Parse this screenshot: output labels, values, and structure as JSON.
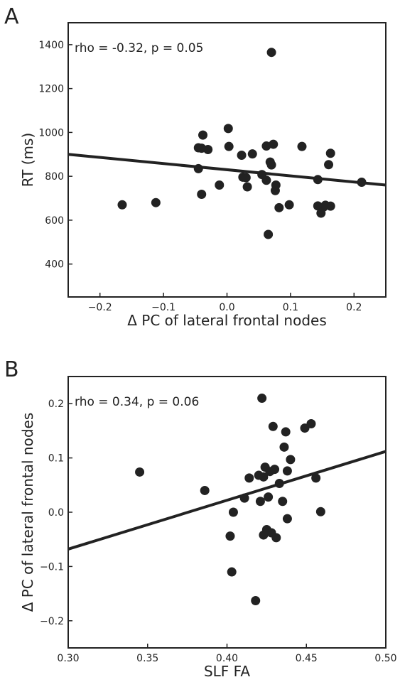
{
  "chart_data": [
    {
      "panel": "A",
      "type": "scatter",
      "xlabel": "Δ PC of lateral frontal nodes",
      "ylabel": "RT (ms)",
      "annotation": "rho = -0.32, p = 0.05",
      "xlim": [
        -0.25,
        0.25
      ],
      "ylim": [
        250,
        1500
      ],
      "xticks": [
        -0.2,
        -0.1,
        0.0,
        0.1,
        0.2
      ],
      "xtick_labels": [
        "−0.2",
        "−0.1",
        "0.0",
        "0.1",
        "0.2"
      ],
      "yticks": [
        400,
        600,
        800,
        1000,
        1200,
        1400
      ],
      "ytick_labels": [
        "400",
        "600",
        "800",
        "1000",
        "1200",
        "1400"
      ],
      "grid": false,
      "point_color": "#222222",
      "fit_line": {
        "x": [
          -0.25,
          0.25
        ],
        "y": [
          900,
          760
        ]
      },
      "points": [
        {
          "x": -0.165,
          "y": 670
        },
        {
          "x": -0.112,
          "y": 680
        },
        {
          "x": -0.045,
          "y": 835
        },
        {
          "x": -0.045,
          "y": 930
        },
        {
          "x": -0.038,
          "y": 988
        },
        {
          "x": -0.04,
          "y": 928
        },
        {
          "x": -0.04,
          "y": 718
        },
        {
          "x": -0.03,
          "y": 922
        },
        {
          "x": -0.012,
          "y": 760
        },
        {
          "x": 0.002,
          "y": 1018
        },
        {
          "x": 0.003,
          "y": 936
        },
        {
          "x": 0.023,
          "y": 896
        },
        {
          "x": 0.025,
          "y": 796
        },
        {
          "x": 0.03,
          "y": 794
        },
        {
          "x": 0.032,
          "y": 752
        },
        {
          "x": 0.04,
          "y": 902
        },
        {
          "x": 0.055,
          "y": 808
        },
        {
          "x": 0.062,
          "y": 938
        },
        {
          "x": 0.062,
          "y": 782
        },
        {
          "x": 0.065,
          "y": 535
        },
        {
          "x": 0.068,
          "y": 865
        },
        {
          "x": 0.07,
          "y": 1365
        },
        {
          "x": 0.07,
          "y": 852
        },
        {
          "x": 0.073,
          "y": 946
        },
        {
          "x": 0.076,
          "y": 735
        },
        {
          "x": 0.077,
          "y": 760
        },
        {
          "x": 0.082,
          "y": 657
        },
        {
          "x": 0.098,
          "y": 670
        },
        {
          "x": 0.118,
          "y": 936
        },
        {
          "x": 0.143,
          "y": 785
        },
        {
          "x": 0.143,
          "y": 665
        },
        {
          "x": 0.148,
          "y": 632
        },
        {
          "x": 0.152,
          "y": 660
        },
        {
          "x": 0.155,
          "y": 668
        },
        {
          "x": 0.16,
          "y": 853
        },
        {
          "x": 0.163,
          "y": 905
        },
        {
          "x": 0.163,
          "y": 664
        },
        {
          "x": 0.212,
          "y": 773
        }
      ]
    },
    {
      "panel": "B",
      "type": "scatter",
      "xlabel": "SLF FA",
      "ylabel": "Δ PC of lateral frontal nodes",
      "annotation": "rho = 0.34, p = 0.06",
      "xlim": [
        0.3,
        0.5
      ],
      "ylim": [
        -0.25,
        0.25
      ],
      "xticks": [
        0.3,
        0.35,
        0.4,
        0.45,
        0.5
      ],
      "xtick_labels": [
        "0.30",
        "0.35",
        "0.40",
        "0.45",
        "0.50"
      ],
      "yticks": [
        -0.2,
        -0.1,
        0.0,
        0.1,
        0.2
      ],
      "ytick_labels": [
        "−0.2",
        "−0.1",
        "0.0",
        "0.1",
        "0.2"
      ],
      "grid": false,
      "point_color": "#222222",
      "fit_line": {
        "x": [
          0.3,
          0.5
        ],
        "y": [
          -0.068,
          0.112
        ]
      },
      "points": [
        {
          "x": 0.345,
          "y": 0.074
        },
        {
          "x": 0.386,
          "y": 0.04
        },
        {
          "x": 0.402,
          "y": -0.044
        },
        {
          "x": 0.403,
          "y": -0.11
        },
        {
          "x": 0.404,
          "y": 0.0
        },
        {
          "x": 0.411,
          "y": 0.026
        },
        {
          "x": 0.414,
          "y": 0.063
        },
        {
          "x": 0.418,
          "y": -0.163
        },
        {
          "x": 0.42,
          "y": 0.068
        },
        {
          "x": 0.421,
          "y": 0.02
        },
        {
          "x": 0.422,
          "y": 0.21
        },
        {
          "x": 0.423,
          "y": 0.065
        },
        {
          "x": 0.423,
          "y": -0.042
        },
        {
          "x": 0.424,
          "y": 0.083
        },
        {
          "x": 0.425,
          "y": -0.032
        },
        {
          "x": 0.426,
          "y": 0.028
        },
        {
          "x": 0.427,
          "y": 0.075
        },
        {
          "x": 0.428,
          "y": -0.038
        },
        {
          "x": 0.429,
          "y": 0.158
        },
        {
          "x": 0.43,
          "y": 0.079
        },
        {
          "x": 0.431,
          "y": -0.047
        },
        {
          "x": 0.433,
          "y": 0.053
        },
        {
          "x": 0.435,
          "y": 0.02
        },
        {
          "x": 0.436,
          "y": 0.12
        },
        {
          "x": 0.437,
          "y": 0.148
        },
        {
          "x": 0.438,
          "y": 0.076
        },
        {
          "x": 0.438,
          "y": -0.012
        },
        {
          "x": 0.44,
          "y": 0.097
        },
        {
          "x": 0.449,
          "y": 0.155
        },
        {
          "x": 0.453,
          "y": 0.163
        },
        {
          "x": 0.456,
          "y": 0.063
        },
        {
          "x": 0.459,
          "y": 0.001
        }
      ]
    }
  ]
}
